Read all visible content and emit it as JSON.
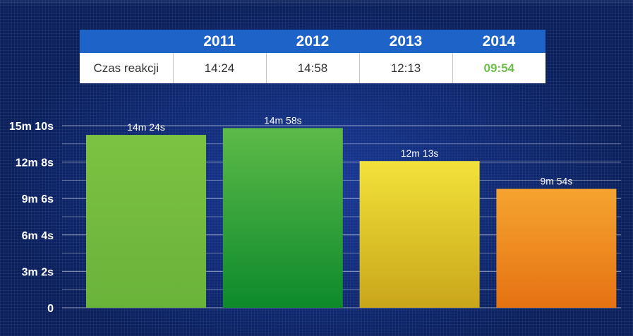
{
  "table": {
    "headers": [
      "",
      "2011",
      "2012",
      "2013",
      "2014"
    ],
    "row_label": "Czas reakcji",
    "values": [
      "14:24",
      "14:58",
      "12:13",
      "09:54"
    ]
  },
  "chart_data": {
    "type": "bar",
    "categories": [
      "2011",
      "2012",
      "2013",
      "2014"
    ],
    "values": [
      864,
      898,
      733,
      594
    ],
    "value_unit": "seconds",
    "data_labels": [
      "14m 24s",
      "14m 58s",
      "12m 13s",
      "9m 54s"
    ],
    "ylim": [
      0,
      910
    ],
    "yticks": [
      0,
      182,
      364,
      546,
      728,
      910
    ],
    "ytick_labels": [
      "0",
      "3m 2s",
      "6m 4s",
      "9m 6s",
      "12m 8s",
      "15m 10s"
    ],
    "grid": true,
    "minor_grid": true,
    "colors": {
      "2011": [
        "#7cc242",
        "#6ab33a"
      ],
      "2012": [
        "#5dba48",
        "#0d8a2c"
      ],
      "2013": [
        "#f2e23a",
        "#c9a61a"
      ],
      "2014": [
        "#f5a430",
        "#e67212"
      ]
    },
    "highlight_color": "#6cc04a"
  }
}
